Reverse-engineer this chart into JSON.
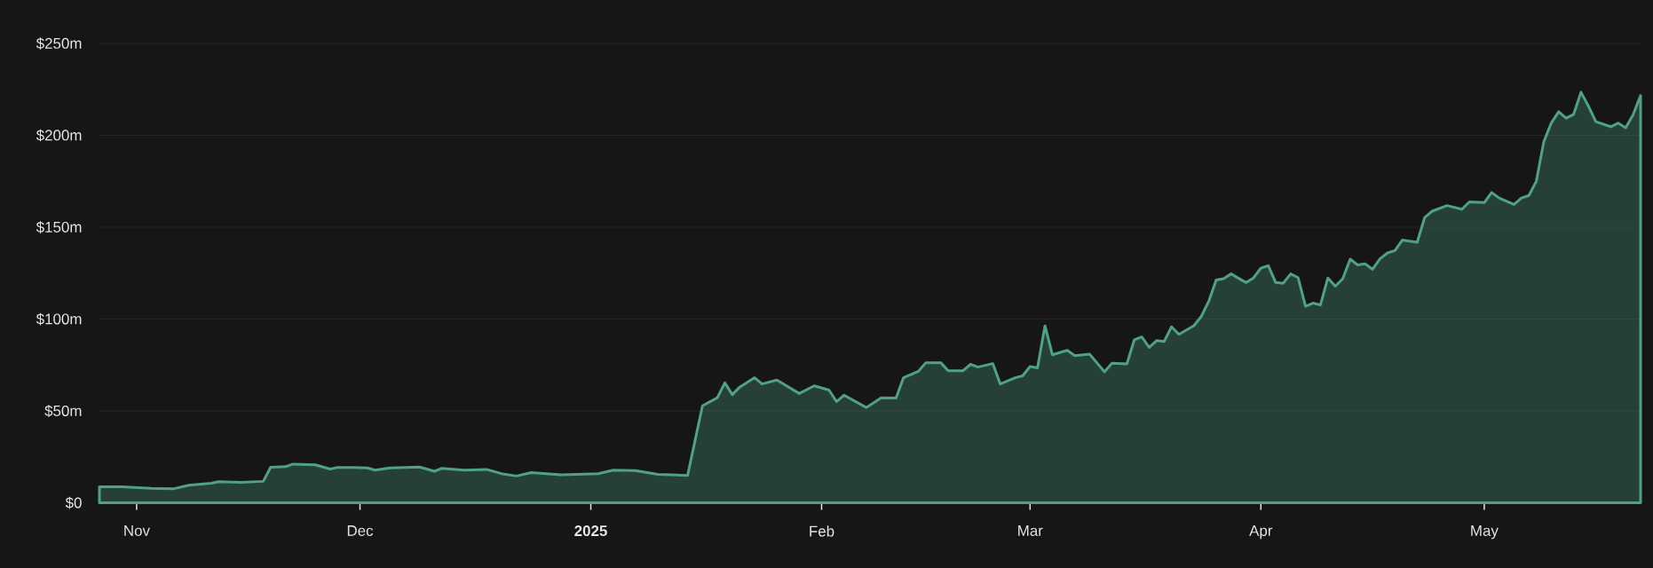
{
  "chart_data": {
    "type": "area",
    "x": [
      "2024-10-27",
      "2024-10-30",
      "2024-11-03",
      "2024-11-06",
      "2024-11-08",
      "2024-11-11",
      "2024-11-12",
      "2024-11-15",
      "2024-11-18",
      "2024-11-19",
      "2024-11-21",
      "2024-11-22",
      "2024-11-25",
      "2024-11-27",
      "2024-11-28",
      "2024-11-30",
      "2024-12-02",
      "2024-12-03",
      "2024-12-05",
      "2024-12-09",
      "2024-12-11",
      "2024-12-12",
      "2024-12-15",
      "2024-12-18",
      "2024-12-20",
      "2024-12-22",
      "2024-12-24",
      "2024-12-28",
      "2025-01-02",
      "2025-01-04",
      "2025-01-07",
      "2025-01-10",
      "2025-01-14",
      "2025-01-16",
      "2025-01-18",
      "2025-01-19",
      "2025-01-20",
      "2025-01-21",
      "2025-01-23",
      "2025-01-24",
      "2025-01-26",
      "2025-01-29",
      "2025-01-31",
      "2025-02-02",
      "2025-02-03",
      "2025-02-04",
      "2025-02-07",
      "2025-02-09",
      "2025-02-11",
      "2025-02-12",
      "2025-02-14",
      "2025-02-15",
      "2025-02-17",
      "2025-02-18",
      "2025-02-20",
      "2025-02-21",
      "2025-02-22",
      "2025-02-24",
      "2025-02-25",
      "2025-02-27",
      "2025-02-28",
      "2025-03-01",
      "2025-03-02",
      "2025-03-03",
      "2025-03-04",
      "2025-03-06",
      "2025-03-07",
      "2025-03-09",
      "2025-03-11",
      "2025-03-12",
      "2025-03-14",
      "2025-03-15",
      "2025-03-16",
      "2025-03-17",
      "2025-03-18",
      "2025-03-19",
      "2025-03-20",
      "2025-03-21",
      "2025-03-23",
      "2025-03-24",
      "2025-03-25",
      "2025-03-26",
      "2025-03-27",
      "2025-03-28",
      "2025-03-30",
      "2025-03-31",
      "2025-04-01",
      "2025-04-02",
      "2025-04-03",
      "2025-04-04",
      "2025-04-05",
      "2025-04-06",
      "2025-04-07",
      "2025-04-08",
      "2025-04-09",
      "2025-04-10",
      "2025-04-11",
      "2025-04-12",
      "2025-04-13",
      "2025-04-14",
      "2025-04-15",
      "2025-04-16",
      "2025-04-17",
      "2025-04-18",
      "2025-04-19",
      "2025-04-20",
      "2025-04-22",
      "2025-04-23",
      "2025-04-24",
      "2025-04-26",
      "2025-04-28",
      "2025-04-29",
      "2025-05-01",
      "2025-05-02",
      "2025-05-03",
      "2025-05-05",
      "2025-05-06",
      "2025-05-07",
      "2025-05-08",
      "2025-05-09",
      "2025-05-10",
      "2025-05-11",
      "2025-05-12",
      "2025-05-13",
      "2025-05-14",
      "2025-05-15",
      "2025-05-16",
      "2025-05-18",
      "2025-05-19",
      "2025-05-20",
      "2025-05-21",
      "2025-05-22"
    ],
    "series": [
      {
        "color": "#4fa383",
        "values": [
          8.8,
          8.8,
          7.9,
          7.7,
          9.6,
          10.7,
          11.5,
          11.1,
          11.7,
          19.4,
          19.7,
          21.1,
          20.7,
          18.4,
          19.3,
          19.2,
          19.0,
          17.8,
          19.0,
          19.5,
          17.2,
          18.8,
          17.8,
          18.2,
          15.9,
          14.6,
          16.5,
          15.3,
          15.9,
          17.8,
          17.6,
          15.5,
          14.9,
          52.8,
          57.2,
          65.3,
          58.9,
          63.0,
          68.1,
          64.7,
          66.8,
          59.5,
          63.7,
          61.4,
          55.1,
          58.6,
          51.9,
          57.2,
          57.0,
          68.1,
          71.6,
          76.3,
          76.3,
          71.9,
          71.9,
          75.4,
          73.9,
          75.8,
          64.7,
          68.1,
          69.1,
          74.2,
          73.5,
          96.3,
          80.6,
          83.0,
          80.1,
          80.9,
          71.3,
          76.0,
          75.6,
          88.7,
          90.3,
          84.6,
          88.3,
          87.8,
          95.8,
          91.7,
          96.4,
          101.5,
          109.7,
          121.3,
          122.0,
          124.6,
          119.9,
          122.4,
          127.7,
          129.1,
          119.9,
          119.5,
          124.6,
          122.6,
          107.0,
          108.7,
          107.7,
          122.4,
          117.9,
          122.0,
          132.6,
          129.5,
          130.1,
          127.1,
          132.8,
          136.0,
          137.3,
          143.0,
          141.8,
          155.3,
          158.7,
          161.8,
          159.8,
          163.8,
          163.4,
          168.9,
          165.9,
          162.4,
          165.9,
          167.3,
          175.1,
          196.5,
          206.7,
          212.9,
          209.4,
          211.4,
          223.5,
          215.9,
          207.4,
          204.7,
          206.7,
          204.1,
          211.2,
          221.7
        ]
      }
    ],
    "xlim": [
      "2024-10-27",
      "2025-05-22"
    ],
    "xticks": [
      {
        "value": "2024-11-01",
        "label": "Nov"
      },
      {
        "value": "2024-12-01",
        "label": "Dec"
      },
      {
        "value": "2025-01-01",
        "label": "**2025**"
      },
      {
        "value": "2025-02-01",
        "label": "Feb"
      },
      {
        "value": "2025-03-01",
        "label": "Mar"
      },
      {
        "value": "2025-04-01",
        "label": "Apr"
      },
      {
        "value": "2025-05-01",
        "label": "May"
      }
    ],
    "ylim": [
      0,
      250
    ],
    "yticks": [
      {
        "value": 0,
        "label": "$0"
      },
      {
        "value": 50,
        "label": "$50m"
      },
      {
        "value": 100,
        "label": "$100m"
      },
      {
        "value": 150,
        "label": "$150m"
      },
      {
        "value": 200,
        "label": "$200m"
      },
      {
        "value": 250,
        "label": "$250m"
      }
    ],
    "grid": "y"
  }
}
